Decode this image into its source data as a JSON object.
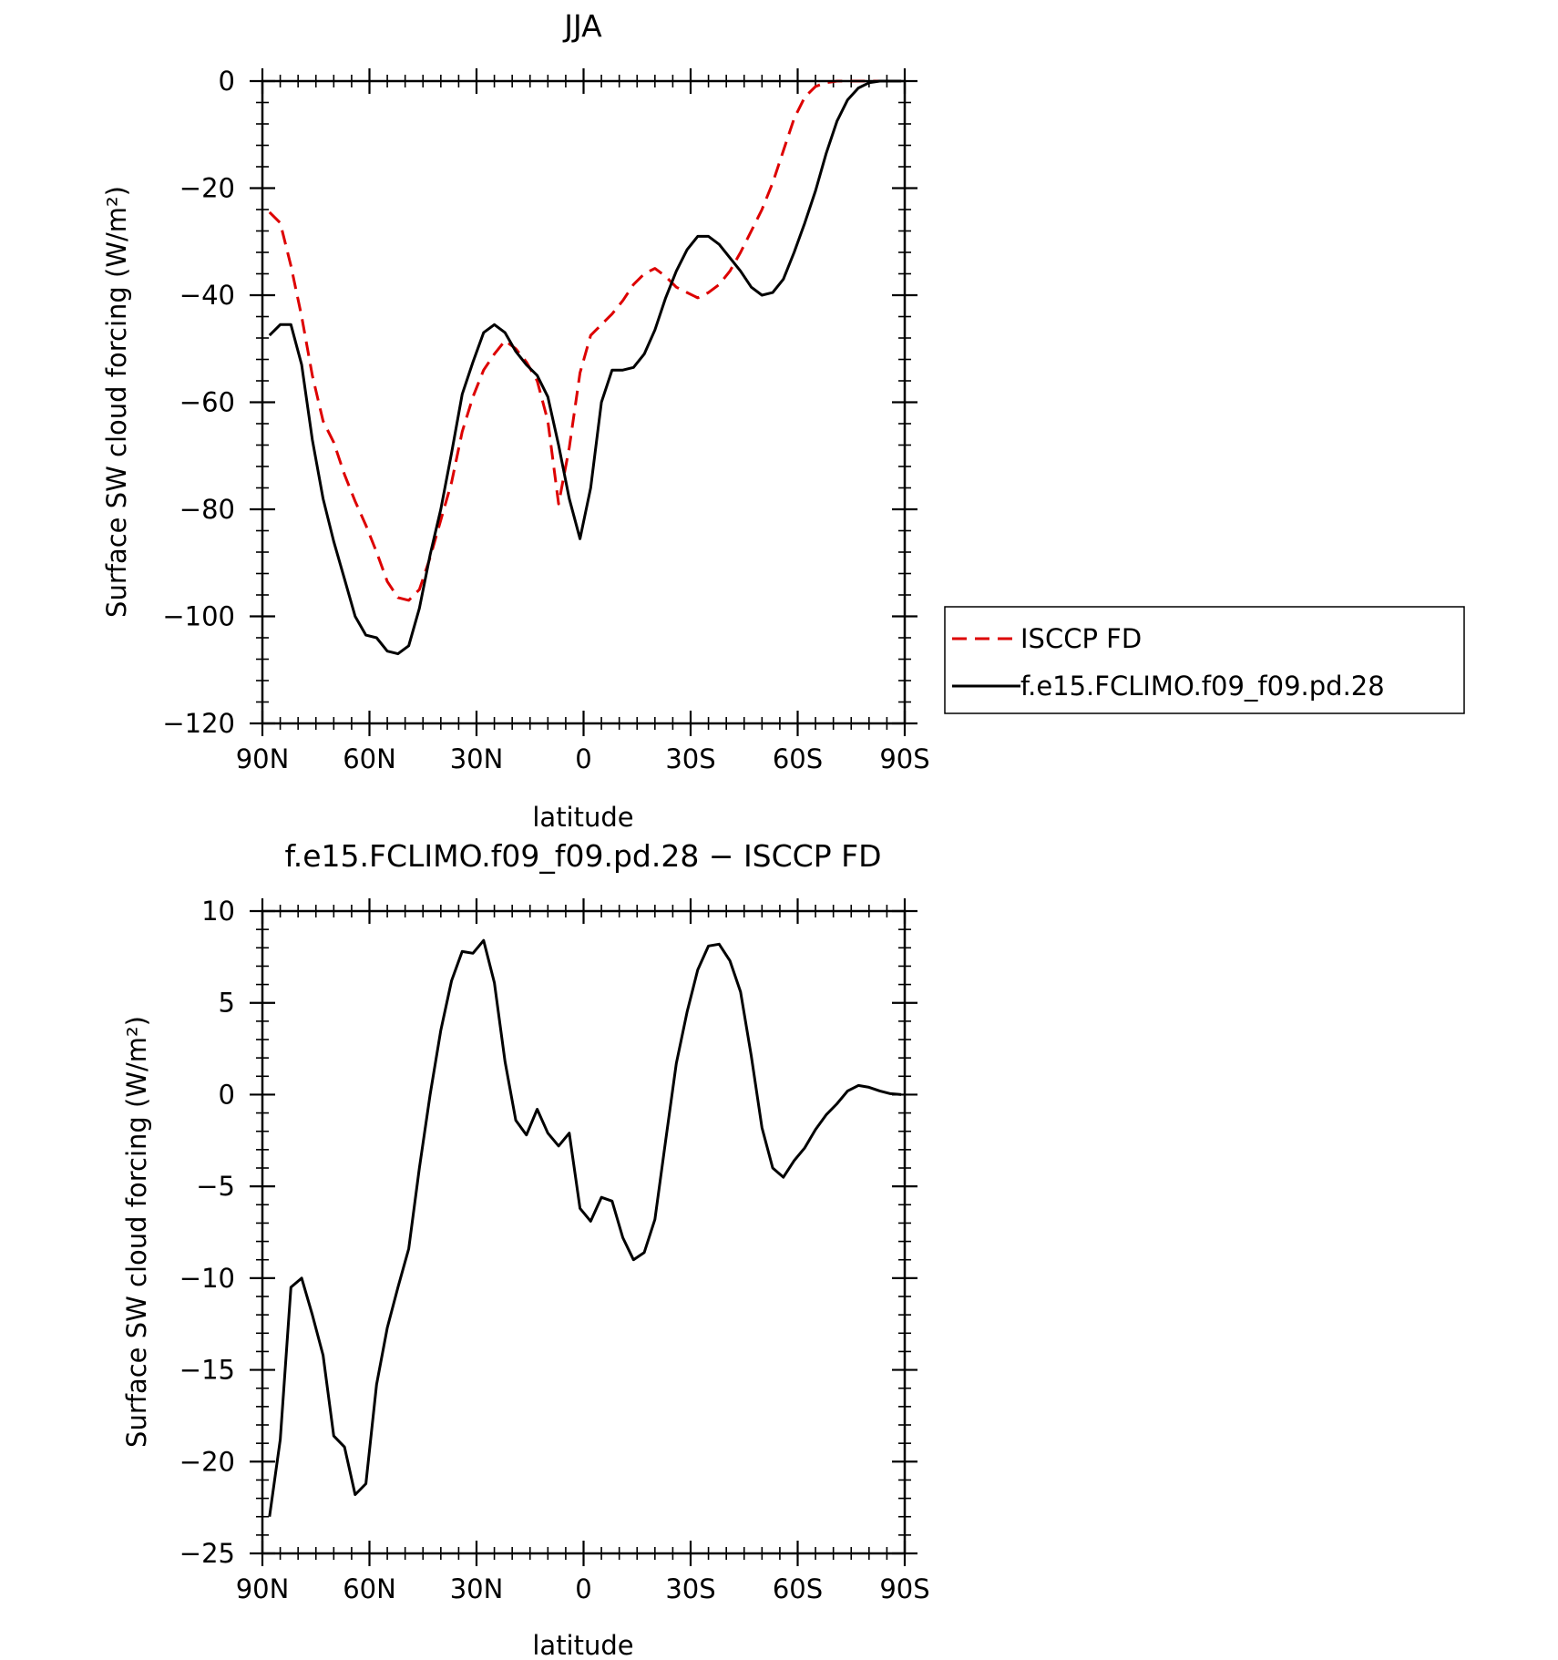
{
  "chart_data": [
    {
      "type": "line",
      "title": "JJA",
      "xlabel": "latitude",
      "ylabel": "Surface SW cloud forcing (W/m²)",
      "xlim": [
        90,
        -90
      ],
      "ylim": [
        -120,
        0
      ],
      "x_ticks": [
        90,
        60,
        30,
        0,
        -30,
        -60,
        -90
      ],
      "x_tick_labels": [
        "90N",
        "60N",
        "30N",
        "0",
        "30S",
        "60S",
        "90S"
      ],
      "y_ticks": [
        0,
        -20,
        -40,
        -60,
        -80,
        -100,
        -120
      ],
      "y_tick_labels": [
        "0",
        "−20",
        "−40",
        "−60",
        "−80",
        "−100",
        "−120"
      ],
      "legend": "right",
      "series": [
        {
          "name": "ISCCP FD",
          "color": "#dd0000",
          "dash": "dashed",
          "x": [
            88,
            85,
            82,
            79,
            76,
            73,
            70,
            67,
            64,
            61,
            58,
            55,
            52,
            49,
            46,
            43,
            40,
            37,
            34,
            31,
            28,
            25,
            22,
            19,
            16,
            13,
            10,
            7,
            4,
            1,
            -2,
            -5,
            -8,
            -11,
            -14,
            -17,
            -20,
            -23,
            -26,
            -29,
            -32,
            -35,
            -38,
            -41,
            -44,
            -47,
            -50,
            -53,
            -56,
            -59,
            -62,
            -65,
            -68,
            -71,
            -74,
            -77,
            -80,
            -83,
            -86,
            -89
          ],
          "y": [
            -24.5,
            -26.5,
            -34.5,
            -44,
            -55,
            -63.5,
            -67.5,
            -73.5,
            -78.5,
            -83,
            -88,
            -93.5,
            -96.5,
            -97,
            -95,
            -89,
            -82,
            -75,
            -65.5,
            -59,
            -54,
            -51,
            -48.5,
            -50,
            -52.5,
            -56,
            -63.5,
            -79,
            -68.5,
            -54.5,
            -47.5,
            -45.5,
            -43.5,
            -41,
            -38,
            -36,
            -35,
            -36.5,
            -38.5,
            -39.5,
            -40.5,
            -39.5,
            -38,
            -35.5,
            -32,
            -28,
            -24,
            -19,
            -13,
            -7,
            -3,
            -1,
            -0.3,
            0,
            0,
            0,
            0,
            0,
            0,
            0
          ]
        },
        {
          "name": "f.e15.FCLIMO.f09_f09.pd.28",
          "color": "#000000",
          "dash": "solid",
          "x": [
            88,
            85,
            82,
            79,
            76,
            73,
            70,
            67,
            64,
            61,
            58,
            55,
            52,
            49,
            46,
            43,
            40,
            37,
            34,
            31,
            28,
            25,
            22,
            19,
            16,
            13,
            10,
            7,
            4,
            1,
            -2,
            -5,
            -8,
            -11,
            -14,
            -17,
            -20,
            -23,
            -26,
            -29,
            -32,
            -35,
            -38,
            -41,
            -44,
            -47,
            -50,
            -53,
            -56,
            -59,
            -62,
            -65,
            -68,
            -71,
            -74,
            -77,
            -80,
            -83,
            -86,
            -89
          ],
          "y": [
            -47.5,
            -45.5,
            -45.5,
            -53,
            -67,
            -78,
            -86,
            -93,
            -100,
            -103.5,
            -104,
            -106.5,
            -107,
            -105.5,
            -98.5,
            -88.5,
            -80,
            -69.5,
            -58.5,
            -52.5,
            -47,
            -45.5,
            -47,
            -50.5,
            -53,
            -55,
            -59,
            -68,
            -78,
            -85.5,
            -76,
            -60,
            -54,
            -54,
            -53.5,
            -51,
            -46.5,
            -40.5,
            -35.5,
            -31.5,
            -29,
            -29,
            -30.5,
            -33,
            -35.5,
            -38.5,
            -40,
            -39.5,
            -37,
            -32,
            -26.5,
            -20.5,
            -13.5,
            -7.5,
            -3.5,
            -1.3,
            -0.3,
            0,
            0,
            0
          ]
        }
      ]
    },
    {
      "type": "line",
      "title": "f.e15.FCLIMO.f09_f09.pd.28 − ISCCP FD",
      "xlabel": "latitude",
      "ylabel": "Surface SW cloud forcing (W/m²)",
      "xlim": [
        90,
        -90
      ],
      "ylim": [
        -25,
        10
      ],
      "x_ticks": [
        90,
        60,
        30,
        0,
        -30,
        -60,
        -90
      ],
      "x_tick_labels": [
        "90N",
        "60N",
        "30N",
        "0",
        "30S",
        "60S",
        "90S"
      ],
      "y_ticks": [
        10,
        5,
        0,
        -5,
        -10,
        -15,
        -20,
        -25
      ],
      "y_tick_labels": [
        "10",
        "5",
        "0",
        "−5",
        "−10",
        "−15",
        "−20",
        "−25"
      ],
      "series": [
        {
          "color": "#000000",
          "dash": "solid",
          "x": [
            88,
            85,
            82,
            79,
            76,
            73,
            70,
            67,
            64,
            61,
            58,
            55,
            52,
            49,
            46,
            43,
            40,
            37,
            34,
            31,
            28,
            25,
            22,
            19,
            16,
            13,
            10,
            7,
            4,
            1,
            -2,
            -5,
            -8,
            -11,
            -14,
            -17,
            -20,
            -23,
            -26,
            -29,
            -32,
            -35,
            -38,
            -41,
            -44,
            -47,
            -50,
            -53,
            -56,
            -59,
            -62,
            -65,
            -68,
            -71,
            -74,
            -77,
            -80,
            -83,
            -86,
            -89
          ],
          "y": [
            -23,
            -18.8,
            -10.5,
            -10,
            -12,
            -14.2,
            -18.6,
            -19.2,
            -21.8,
            -21.2,
            -15.8,
            -12.7,
            -10.5,
            -8.4,
            -4,
            0,
            3.5,
            6.2,
            7.8,
            7.7,
            8.4,
            6.1,
            1.8,
            -1.4,
            -2.2,
            -0.8,
            -2.1,
            -2.8,
            -2.1,
            -6.2,
            -6.9,
            -5.6,
            -5.8,
            -7.8,
            -9,
            -8.6,
            -6.8,
            -2.5,
            1.7,
            4.5,
            6.8,
            8.1,
            8.2,
            7.3,
            5.6,
            2.1,
            -1.8,
            -4,
            -4.5,
            -3.6,
            -2.9,
            -1.9,
            -1.1,
            -0.5,
            0.2,
            0.5,
            0.4,
            0.2,
            0.05,
            0
          ]
        }
      ]
    }
  ]
}
